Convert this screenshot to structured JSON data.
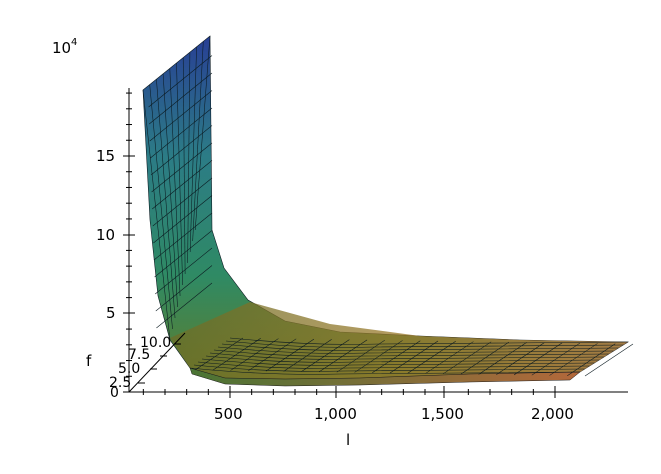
{
  "chart_data": {
    "type": "surface3d",
    "title": "",
    "z_scale_label": "10",
    "z_scale_exponent": "4",
    "x_label": "l",
    "y_label": "f",
    "x_ticks": [
      "500",
      "1,000",
      "1,500",
      "2,000"
    ],
    "y_ticks": [
      "0",
      "2.5",
      "5.0",
      "7.5",
      "10.0"
    ],
    "z_ticks": [
      "0",
      "5",
      "10",
      "15"
    ],
    "x_range": [
      100,
      2000
    ],
    "y_range": [
      0,
      10
    ],
    "z_range": [
      0,
      19
    ],
    "z_scale": 10000,
    "function_note_profile_l": [
      100,
      150,
      200,
      250,
      300,
      350,
      400,
      500,
      600,
      800,
      1000,
      1500,
      2000
    ],
    "function_note_profile_z": [
      18.8,
      12.5,
      9.4,
      7.5,
      6.3,
      5.4,
      4.7,
      3.8,
      3.1,
      2.4,
      1.9,
      1.25,
      0.94
    ],
    "colors": {
      "high": "#1f3d8a",
      "mid": "#2f8f6a",
      "low": "#7c8a2a",
      "base": "#c85a3a"
    }
  }
}
